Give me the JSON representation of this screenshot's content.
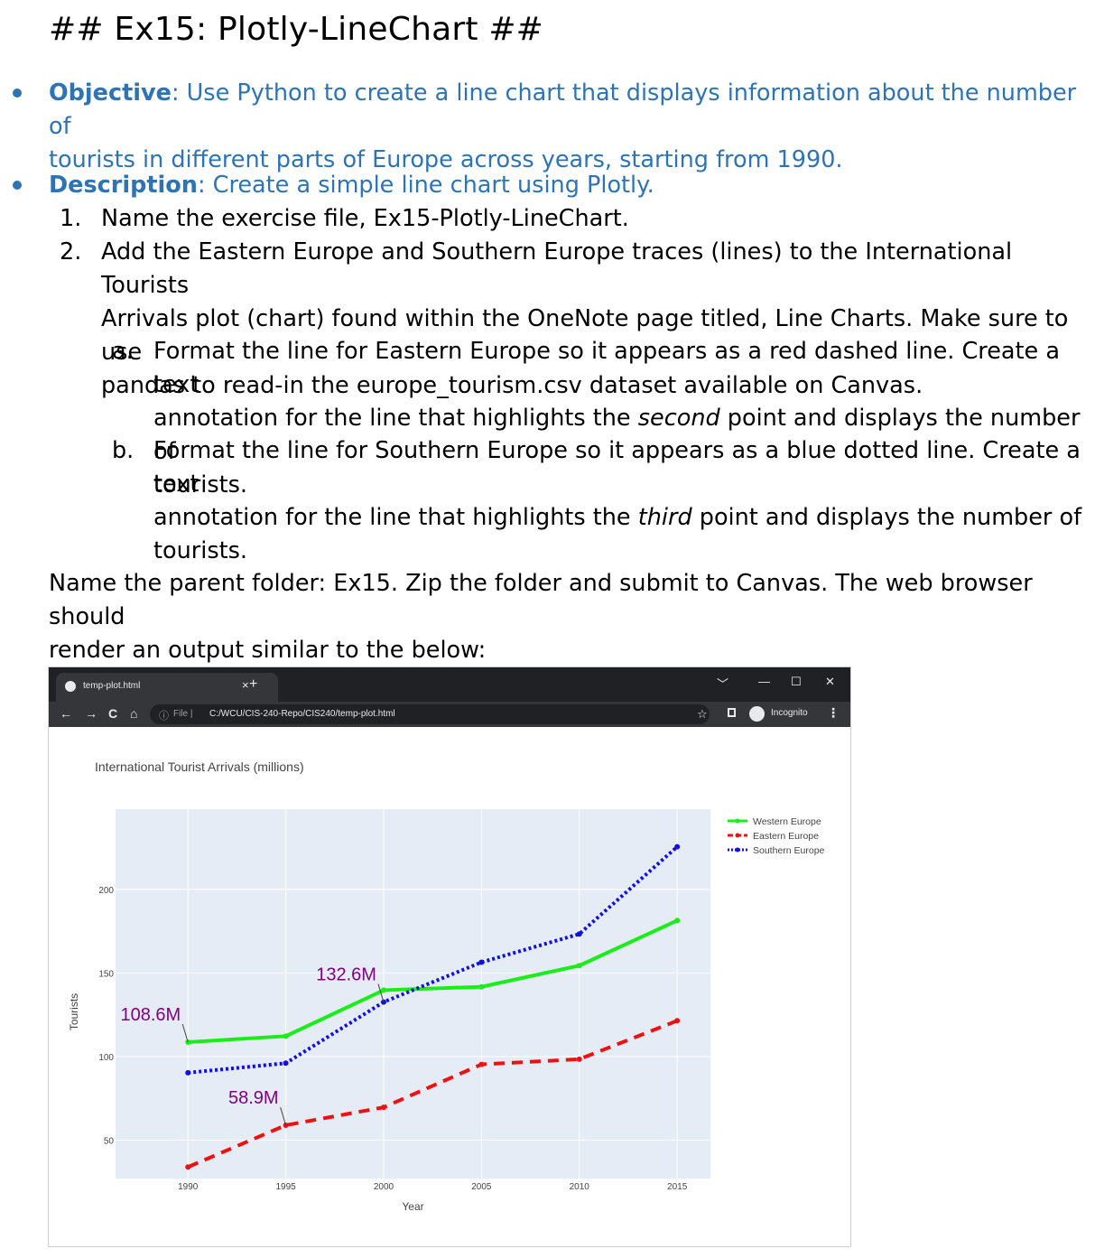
{
  "document": {
    "heading": "## Ex15: Plotly-LineChart ##",
    "objective": {
      "label": "Objective",
      "text_line1": ": Use Python to create a line chart that displays information about the number of",
      "text_line2": "tourists in different parts of Europe across years, starting from 1990."
    },
    "description": {
      "label": "Description",
      "text": ": Create a simple line chart using Plotly."
    },
    "steps": [
      {
        "num": "1.",
        "lines": [
          "Name the exercise file, Ex15-Plotly-LineChart."
        ]
      },
      {
        "num": "2.",
        "lines": [
          "Add the Eastern Europe and Southern Europe traces (lines) to the International Tourists",
          "Arrivals plot (chart) found within the OneNote page titled, Line Charts. Make sure to use",
          "pandas to read-in the europe_tourism.csv dataset available on Canvas."
        ]
      }
    ],
    "substeps": [
      {
        "letter": "a.",
        "line1": "Format the line for Eastern Europe so it appears as a red dashed line. Create a text",
        "line2_pre": "annotation for the line that highlights the ",
        "line2_em": "second",
        "line2_post": " point and displays the number of",
        "line3": "tourists."
      },
      {
        "letter": "b.",
        "line1": "Format the line for Southern Europe so it appears as a blue dotted line. Create a text",
        "line2_pre": "annotation for the line that highlights the ",
        "line2_em": "third",
        "line2_post": " point and displays the number of",
        "line3": "tourists."
      }
    ],
    "closing": [
      "Name the parent folder: Ex15. Zip the folder and submit to Canvas. The web browser should",
      "render an output similar to the below:"
    ]
  },
  "browser": {
    "tab_title": "temp-plot.html",
    "tab_close": "×",
    "new_tab": "+",
    "window_controls": [
      "﹀",
      "—",
      "☐",
      "✕"
    ],
    "nav": {
      "back": "←",
      "forward": "→",
      "reload": "C",
      "home": "⌂"
    },
    "address": {
      "info_icon": "ⓘ",
      "scheme_label": "File  |",
      "url": "C:/WCU/CIS-240-Repo/CIS240/temp-plot.html",
      "star": "☆"
    },
    "incognito_label": "Incognito",
    "menu": "⋮"
  },
  "chart_data": {
    "type": "line",
    "title": "International Tourist Arrivals (millions)",
    "xlabel": "Year",
    "ylabel": "Tourists",
    "x": [
      1990,
      1995,
      2000,
      2005,
      2010,
      2015
    ],
    "xticks": [
      "1990",
      "1995",
      "2000",
      "2005",
      "2010",
      "2015"
    ],
    "yticks": [
      "50",
      "100",
      "150",
      "200"
    ],
    "ytick_values": [
      50,
      100,
      150,
      200
    ],
    "xlim": [
      1986.3,
      2016.7
    ],
    "ylim": [
      27,
      248
    ],
    "grid": true,
    "legend_position": "top-right",
    "series": [
      {
        "name": "Western Europe",
        "values": [
          108.6,
          112.2,
          139.7,
          141.7,
          154.4,
          181.4
        ],
        "color": "#19ee19",
        "dash": "solid"
      },
      {
        "name": "Eastern Europe",
        "values": [
          33.9,
          58.9,
          69.6,
          95.3,
          98.4,
          121.4
        ],
        "color": "#ee1111",
        "dash": "dash"
      },
      {
        "name": "Southern Europe",
        "values": [
          90.3,
          96.0,
          132.6,
          156.4,
          173.3,
          225.5
        ],
        "color": "#1111dd",
        "dash": "dot"
      }
    ],
    "annotations": [
      {
        "text": "108.6M",
        "series": 0,
        "point": 0
      },
      {
        "text": "58.9M",
        "series": 1,
        "point": 1
      },
      {
        "text": "132.6M",
        "series": 2,
        "point": 2
      }
    ],
    "colors": {
      "plot_bg": "#e5ecf6",
      "grid": "#ffffff",
      "annotation": "#800080",
      "tick_text": "#444444"
    }
  }
}
